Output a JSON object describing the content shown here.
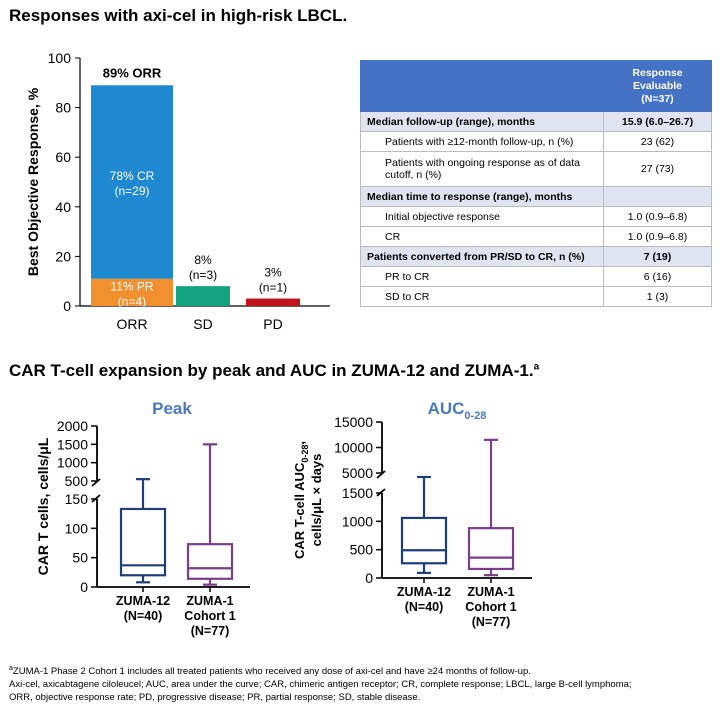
{
  "titles": {
    "top": "Responses with axi-cel in high-risk LBCL.",
    "bottom_main": "CAR T-cell expansion by peak and AUC in ZUMA-12 and ZUMA-1.",
    "bottom_sup": "a"
  },
  "response_table": {
    "header_lines": [
      "Response",
      "Evaluable",
      "(N=37)"
    ],
    "rows": [
      {
        "kind": "section",
        "label": "Median follow-up (range), months",
        "value": "15.9 (6.0–26.7)"
      },
      {
        "kind": "row",
        "label": "Patients with ≥12-month follow-up, n (%)",
        "value": "23 (62)"
      },
      {
        "kind": "row2",
        "label1": "Patients with ongoing response as of data",
        "label2": "cutoff, n (%)",
        "value": "27 (73)"
      },
      {
        "kind": "section",
        "label": "Median time to response (range), months",
        "value": ""
      },
      {
        "kind": "row",
        "label": "Initial objective response",
        "value": "1.0 (0.9–6.8)"
      },
      {
        "kind": "row",
        "label": "CR",
        "value": "1.0 (0.9–6.8)"
      },
      {
        "kind": "section",
        "label": "Patients converted from PR/SD to CR, n (%)",
        "value": "7 (19)"
      },
      {
        "kind": "row",
        "label": "PR to CR",
        "value": "6 (16)"
      },
      {
        "kind": "row",
        "label": "SD to CR",
        "value": "1 (3)"
      }
    ]
  },
  "chart_data": [
    {
      "type": "bar",
      "ylabel": "Best Objective Response, %",
      "ylim": [
        0,
        100
      ],
      "yticks": [
        0,
        20,
        40,
        60,
        80,
        100
      ],
      "categories": [
        "ORR",
        "SD",
        "PD"
      ],
      "stacked": {
        "category": "ORR",
        "segments": [
          {
            "name": "PR",
            "value": 11,
            "label1": "11% PR",
            "label2": "(n=4)",
            "color": "#f0902e"
          },
          {
            "name": "CR",
            "value": 78,
            "label1": "78% CR",
            "label2": "(n=29)",
            "color": "#1e88d0"
          }
        ],
        "top_label": "89% ORR"
      },
      "bars": [
        {
          "category": "SD",
          "value": 8,
          "label1": "8%",
          "label2": "(n=3)",
          "color": "#13a381"
        },
        {
          "category": "PD",
          "value": 3,
          "label1": "3%",
          "label2": "(n=1)",
          "color": "#c0151c"
        }
      ]
    },
    {
      "type": "box",
      "title": "Peak",
      "ylabel": "CAR T cells, cells/μL",
      "axis_break_after": 150,
      "lower_ticks": [
        0,
        50,
        100,
        150
      ],
      "upper_ticks": [
        500,
        1000,
        1500,
        2000
      ],
      "groups": [
        {
          "label1": "ZUMA-12",
          "label2": "(N=40)",
          "label3": "",
          "color": "#203f7a",
          "min": 8,
          "q1": 20,
          "median": 37,
          "q3": 133,
          "max": 550
        },
        {
          "label1": "ZUMA-1",
          "label2": "Cohort 1",
          "label3": "(N=77)",
          "color": "#7b3d8c",
          "min": 4,
          "q1": 14,
          "median": 32,
          "q3": 73,
          "max": 1500
        }
      ]
    },
    {
      "type": "box",
      "title": "AUC",
      "title_sub": "0-28",
      "ylabel_line1": "CAR T-cell AUC",
      "ylabel_line1_sub": "0-28",
      "ylabel_line1_end": ",",
      "ylabel_line2": "cells/μL × days",
      "axis_break_after": 1500,
      "lower_ticks": [
        0,
        500,
        1000,
        1500
      ],
      "upper_ticks": [
        5000,
        10000,
        15000
      ],
      "groups": [
        {
          "label1": "ZUMA-12",
          "label2": "(N=40)",
          "label3": "",
          "color": "#203f7a",
          "min": 90,
          "q1": 260,
          "median": 490,
          "q3": 1060,
          "max": 4300
        },
        {
          "label1": "ZUMA-1",
          "label2": "Cohort 1",
          "label3": "(N=77)",
          "color": "#7b3d8c",
          "min": 50,
          "q1": 160,
          "median": 360,
          "q3": 880,
          "max": 11500
        }
      ]
    }
  ],
  "footnotes": [
    "ZUMA-1 Phase 2 Cohort 1 includes all treated patients who received any dose of axi-cel and have ≥24 months of follow-up.",
    "Axi-cel, axicabtagene ciloleucel; AUC, area under the curve; CAR, chimeric antigen receptor; CR, complete response; LBCL, large B-cell lymphoma;",
    "ORR, objective response rate; PD, progressive disease; PR, partial response; SD, stable disease."
  ],
  "footnote_marker": "a"
}
